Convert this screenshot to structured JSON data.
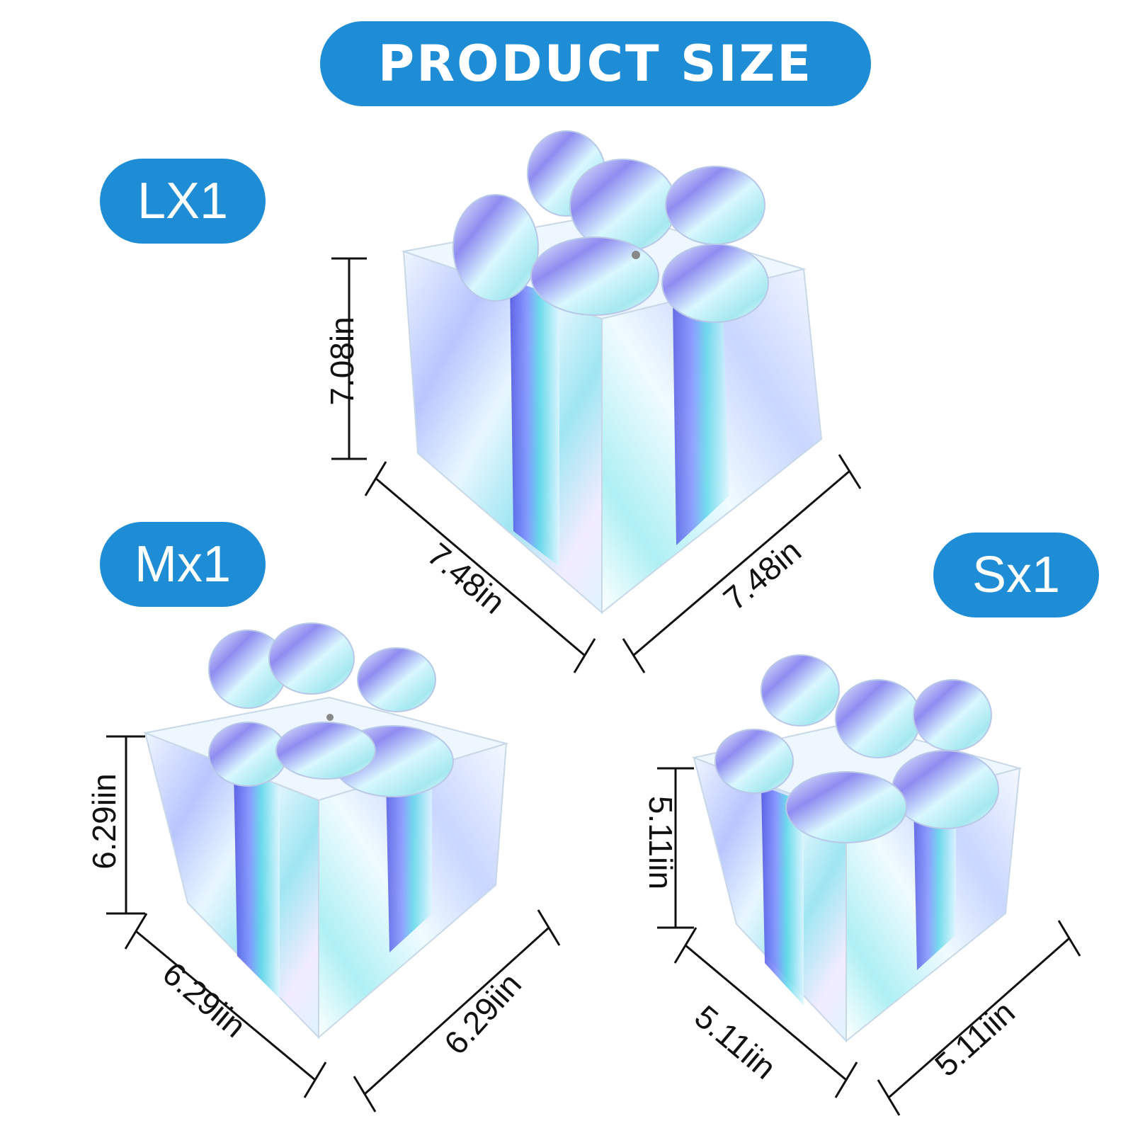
{
  "header": {
    "title": "PRODUCT SIZE"
  },
  "colors": {
    "accent": "#1f8dd6",
    "line": "#111111"
  },
  "large": {
    "label": "LX1",
    "height": "7.08in",
    "width": "7.48in",
    "depth": "7.48in"
  },
  "medium": {
    "label": "Mx1",
    "height": "6.29iin",
    "width": "6.29iin",
    "depth": "6.29iin"
  },
  "small": {
    "label": "Sx1",
    "height": "5.11iin",
    "width": "5.11iin",
    "depth": "5.11iin"
  }
}
